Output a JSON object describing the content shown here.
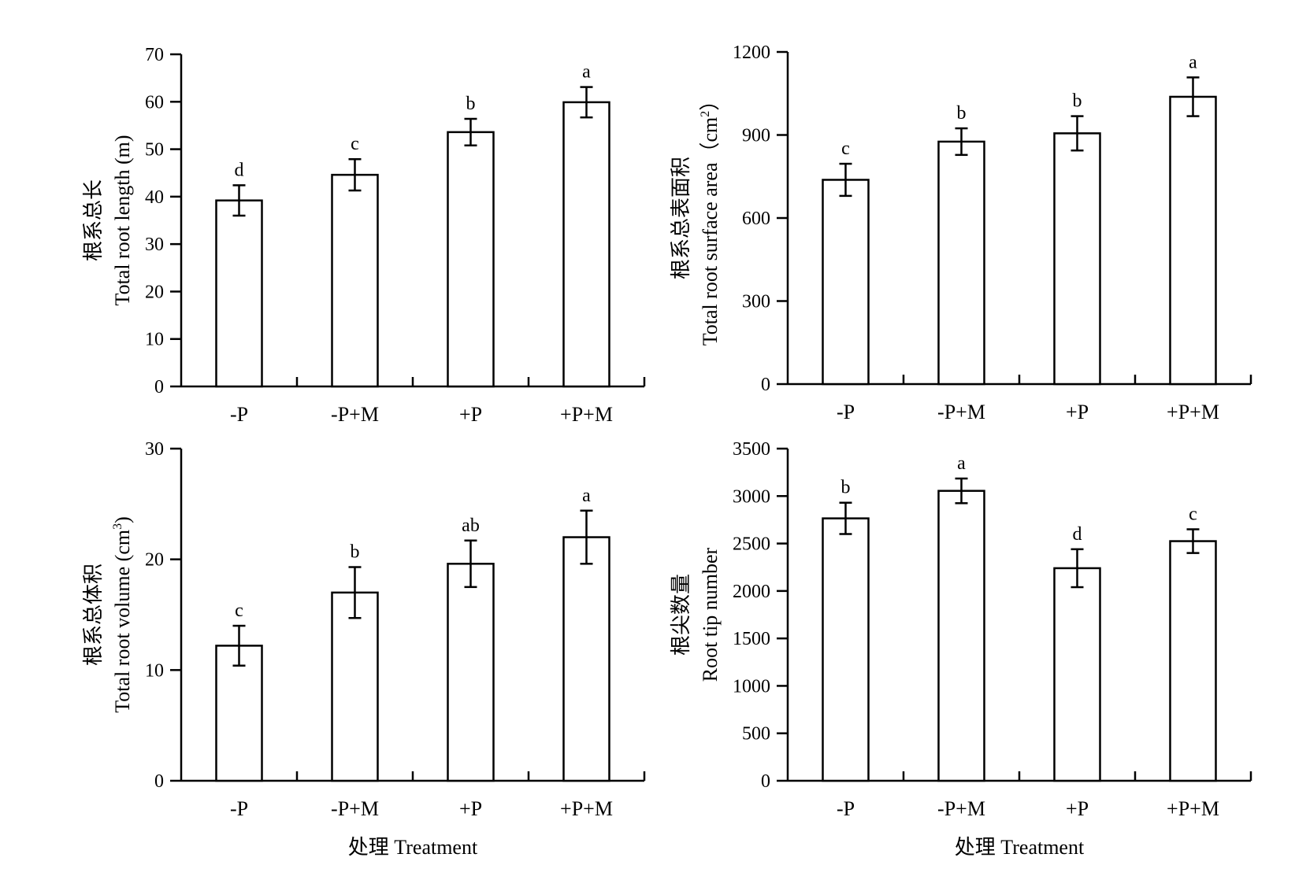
{
  "chart_data": [
    {
      "type": "bar",
      "categories": [
        "-P",
        "-P+M",
        "+P",
        "+P+M"
      ],
      "values": [
        39.2,
        44.6,
        53.6,
        59.9
      ],
      "errors": [
        3.2,
        3.3,
        2.8,
        3.2
      ],
      "significance": [
        "d",
        "c",
        "b",
        "a"
      ],
      "ylabel_cn": "根系总长",
      "ylabel_en": "Total root length (m)",
      "xlabel": "",
      "ylim": [
        0,
        70
      ],
      "yticks": [
        0,
        10,
        20,
        30,
        40,
        50,
        60,
        70
      ]
    },
    {
      "type": "bar",
      "categories": [
        "-P",
        "-P+M",
        "+P",
        "+P+M"
      ],
      "values": [
        738,
        876,
        906,
        1038
      ],
      "errors": [
        58,
        48,
        62,
        70
      ],
      "significance": [
        "c",
        "b",
        "b",
        "a"
      ],
      "ylabel_cn": "根系总表面积",
      "ylabel_en": "Total root surface area（cm",
      "ylabel_en_sup": "2",
      "ylabel_en_end": "）",
      "xlabel": "",
      "ylim": [
        0,
        1200
      ],
      "yticks": [
        0,
        300,
        600,
        900,
        1200
      ]
    },
    {
      "type": "bar",
      "categories": [
        "-P",
        "-P+M",
        "+P",
        "+P+M"
      ],
      "values": [
        12.2,
        17.0,
        19.6,
        22.0
      ],
      "errors": [
        1.8,
        2.3,
        2.1,
        2.4
      ],
      "significance": [
        "c",
        "b",
        "ab",
        "a"
      ],
      "ylabel_cn": "根系总体积",
      "ylabel_en": "Total root volume (cm",
      "ylabel_en_sup": "3",
      "ylabel_en_end": ")",
      "xlabel": "处理 Treatment",
      "ylim": [
        0,
        30
      ],
      "yticks": [
        0,
        10,
        20,
        30
      ]
    },
    {
      "type": "bar",
      "categories": [
        "-P",
        "-P+M",
        "+P",
        "+P+M"
      ],
      "values": [
        2765,
        3055,
        2240,
        2525
      ],
      "errors": [
        165,
        130,
        200,
        125
      ],
      "significance": [
        "b",
        "a",
        "d",
        "c"
      ],
      "ylabel_cn": "根尖数量",
      "ylabel_en": "Root tip number",
      "xlabel": "处理 Treatment",
      "ylim": [
        0,
        3500
      ],
      "yticks": [
        0,
        500,
        1000,
        1500,
        2000,
        2500,
        3000,
        3500
      ]
    }
  ]
}
